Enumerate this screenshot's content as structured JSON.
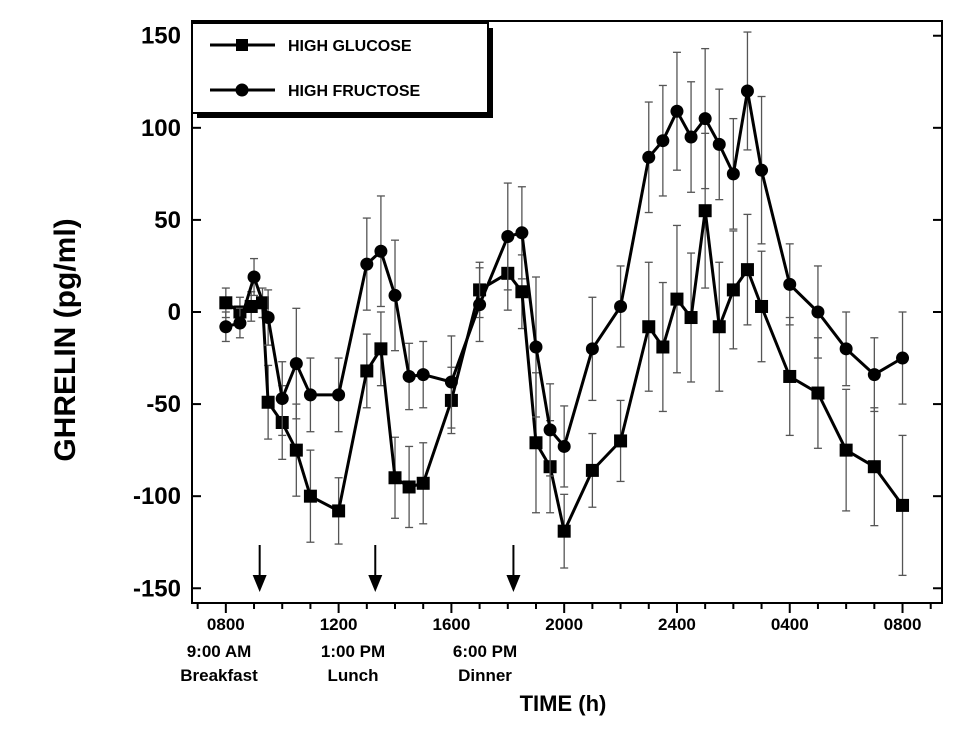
{
  "chart_data": {
    "type": "line",
    "ylabel": "GHRELIN (pg/ml)",
    "xlabel": "TIME (h)",
    "yticks": [
      -150,
      -100,
      -50,
      0,
      50,
      100,
      150
    ],
    "ylim": [
      -158,
      158
    ],
    "xlim": [
      6.8,
      33.4
    ],
    "xticks": [
      {
        "x": 8,
        "label": "0800"
      },
      {
        "x": 12,
        "label": "1200"
      },
      {
        "x": 16,
        "label": "1600"
      },
      {
        "x": 20,
        "label": "2000"
      },
      {
        "x": 24,
        "label": "2400"
      },
      {
        "x": 28,
        "label": "0400"
      },
      {
        "x": 32,
        "label": "0800"
      }
    ],
    "meals": [
      {
        "x": 9.2,
        "time": "9:00 AM",
        "meal": "Breakfast"
      },
      {
        "x": 13.3,
        "time": "1:00 PM",
        "meal": "Lunch"
      },
      {
        "x": 18.2,
        "time": "6:00 PM",
        "meal": "Dinner"
      }
    ],
    "legend_position": "top-left",
    "series": [
      {
        "name": "HIGH GLUCOSE",
        "marker": "square",
        "points": [
          {
            "x": 8.0,
            "y": 5,
            "err": 8
          },
          {
            "x": 8.5,
            "y": 0,
            "err": 8
          },
          {
            "x": 8.9,
            "y": 3,
            "err": 8
          },
          {
            "x": 9.3,
            "y": 5,
            "err": 8
          },
          {
            "x": 9.5,
            "y": -49,
            "err": 20
          },
          {
            "x": 10.0,
            "y": -60,
            "err": 20
          },
          {
            "x": 10.5,
            "y": -75,
            "err": 25
          },
          {
            "x": 11.0,
            "y": -100,
            "err": 25
          },
          {
            "x": 12.0,
            "y": -108,
            "err": 18
          },
          {
            "x": 13.0,
            "y": -32,
            "err": 20
          },
          {
            "x": 13.5,
            "y": -20,
            "err": 20
          },
          {
            "x": 14.0,
            "y": -90,
            "err": 22
          },
          {
            "x": 14.5,
            "y": -95,
            "err": 22
          },
          {
            "x": 15.0,
            "y": -93,
            "err": 22
          },
          {
            "x": 16.0,
            "y": -48,
            "err": 18
          },
          {
            "x": 17.0,
            "y": 12,
            "err": 15
          },
          {
            "x": 18.0,
            "y": 21,
            "err": 20
          },
          {
            "x": 18.5,
            "y": 11,
            "err": 20
          },
          {
            "x": 19.0,
            "y": -71,
            "err": 38
          },
          {
            "x": 19.5,
            "y": -84,
            "err": 25
          },
          {
            "x": 20.0,
            "y": -119,
            "err": 20
          },
          {
            "x": 21.0,
            "y": -86,
            "err": 20
          },
          {
            "x": 22.0,
            "y": -70,
            "err": 22
          },
          {
            "x": 23.0,
            "y": -8,
            "err": 35
          },
          {
            "x": 23.5,
            "y": -19,
            "err": 35
          },
          {
            "x": 24.0,
            "y": 7,
            "err": 40
          },
          {
            "x": 24.5,
            "y": -3,
            "err": 35
          },
          {
            "x": 25.0,
            "y": 55,
            "err": 42
          },
          {
            "x": 25.5,
            "y": -8,
            "err": 35
          },
          {
            "x": 26.0,
            "y": 12,
            "err": 32
          },
          {
            "x": 26.5,
            "y": 23,
            "err": 30
          },
          {
            "x": 27.0,
            "y": 3,
            "err": 30
          },
          {
            "x": 28.0,
            "y": -35,
            "err": 32
          },
          {
            "x": 29.0,
            "y": -44,
            "err": 30
          },
          {
            "x": 30.0,
            "y": -75,
            "err": 33
          },
          {
            "x": 31.0,
            "y": -84,
            "err": 32
          },
          {
            "x": 32.0,
            "y": -105,
            "err": 38
          }
        ]
      },
      {
        "name": "HIGH FRUCTOSE",
        "marker": "circle",
        "points": [
          {
            "x": 8.0,
            "y": -8,
            "err": 8
          },
          {
            "x": 8.5,
            "y": -6,
            "err": 8
          },
          {
            "x": 9.0,
            "y": 19,
            "err": 10
          },
          {
            "x": 9.5,
            "y": -3,
            "err": 15
          },
          {
            "x": 10.0,
            "y": -47,
            "err": 20
          },
          {
            "x": 10.5,
            "y": -28,
            "err": 30
          },
          {
            "x": 11.0,
            "y": -45,
            "err": 20
          },
          {
            "x": 12.0,
            "y": -45,
            "err": 20
          },
          {
            "x": 13.0,
            "y": 26,
            "err": 25
          },
          {
            "x": 13.5,
            "y": 33,
            "err": 30
          },
          {
            "x": 14.0,
            "y": 9,
            "err": 30
          },
          {
            "x": 14.5,
            "y": -35,
            "err": 18
          },
          {
            "x": 15.0,
            "y": -34,
            "err": 18
          },
          {
            "x": 16.0,
            "y": -38,
            "err": 25
          },
          {
            "x": 17.0,
            "y": 4,
            "err": 20
          },
          {
            "x": 18.0,
            "y": 41,
            "err": 29
          },
          {
            "x": 18.5,
            "y": 43,
            "err": 25
          },
          {
            "x": 19.0,
            "y": -19,
            "err": 38
          },
          {
            "x": 19.5,
            "y": -64,
            "err": 25
          },
          {
            "x": 20.0,
            "y": -73,
            "err": 22
          },
          {
            "x": 21.0,
            "y": -20,
            "err": 28
          },
          {
            "x": 22.0,
            "y": 3,
            "err": 22
          },
          {
            "x": 23.0,
            "y": 84,
            "err": 30
          },
          {
            "x": 23.5,
            "y": 93,
            "err": 30
          },
          {
            "x": 24.0,
            "y": 109,
            "err": 32
          },
          {
            "x": 24.5,
            "y": 95,
            "err": 30
          },
          {
            "x": 25.0,
            "y": 105,
            "err": 38
          },
          {
            "x": 25.5,
            "y": 91,
            "err": 30
          },
          {
            "x": 26.0,
            "y": 75,
            "err": 30
          },
          {
            "x": 26.5,
            "y": 120,
            "err": 32
          },
          {
            "x": 27.0,
            "y": 77,
            "err": 40
          },
          {
            "x": 28.0,
            "y": 15,
            "err": 22
          },
          {
            "x": 29.0,
            "y": 0,
            "err": 25
          },
          {
            "x": 30.0,
            "y": -20,
            "err": 20
          },
          {
            "x": 31.0,
            "y": -34,
            "err": 20
          },
          {
            "x": 32.0,
            "y": -25,
            "err": 25
          }
        ]
      }
    ]
  }
}
